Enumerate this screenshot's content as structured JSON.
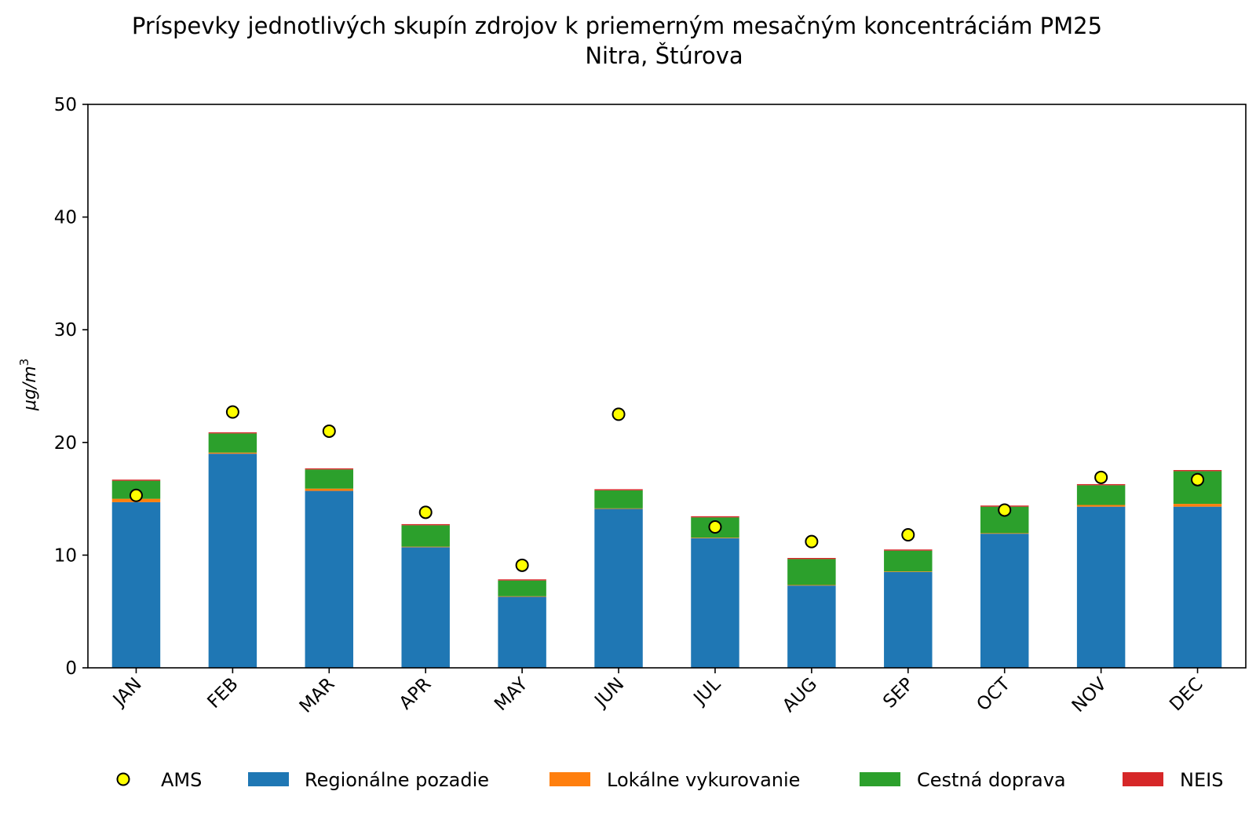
{
  "chart_data": {
    "type": "bar",
    "stacked": true,
    "title": "Príspevky jednotlivých skupín zdrojov k priemerným mesačným koncentráciám PM25",
    "subtitle": "Nitra, Štúrova",
    "ylabel": "μg/m3",
    "ylabel_base": "μg/m",
    "ylabel_sup": "3",
    "xlabel": "",
    "ylim": [
      0,
      50
    ],
    "yticks": [
      0,
      10,
      20,
      30,
      40,
      50
    ],
    "grid": false,
    "legend_position": "bottom",
    "categories": [
      "JAN",
      "FEB",
      "MAR",
      "APR",
      "MAY",
      "JUN",
      "JUL",
      "AUG",
      "SEP",
      "OCT",
      "NOV",
      "DEC"
    ],
    "series": [
      {
        "name": "Regionálne pozadie",
        "color": "#1f77b4",
        "values": [
          14.7,
          19.0,
          15.7,
          10.7,
          6.3,
          14.1,
          11.5,
          7.3,
          8.5,
          11.9,
          14.3,
          14.3
        ]
      },
      {
        "name": "Lokálne vykurovanie",
        "color": "#ff7f0e",
        "values": [
          0.3,
          0.1,
          0.2,
          0.05,
          0.05,
          0.05,
          0.05,
          0.05,
          0.05,
          0.05,
          0.15,
          0.25
        ]
      },
      {
        "name": "Cestná doprava",
        "color": "#2ca02c",
        "values": [
          1.6,
          1.7,
          1.7,
          1.9,
          1.4,
          1.6,
          1.8,
          2.3,
          1.85,
          2.35,
          1.75,
          2.9
        ]
      },
      {
        "name": "NEIS",
        "color": "#d62728",
        "values": [
          0.1,
          0.1,
          0.1,
          0.1,
          0.1,
          0.1,
          0.1,
          0.1,
          0.1,
          0.1,
          0.1,
          0.1
        ]
      }
    ],
    "points": {
      "name": "AMS",
      "color": "#ffff00",
      "edge_color": "#000000",
      "values": [
        15.3,
        22.7,
        21.0,
        13.8,
        9.1,
        22.5,
        12.5,
        11.2,
        11.8,
        14.0,
        16.9,
        16.7
      ]
    },
    "legend": [
      "AMS",
      "Regionálne pozadie",
      "Lokálne vykurovanie",
      "Cestná doprava",
      "NEIS"
    ]
  }
}
